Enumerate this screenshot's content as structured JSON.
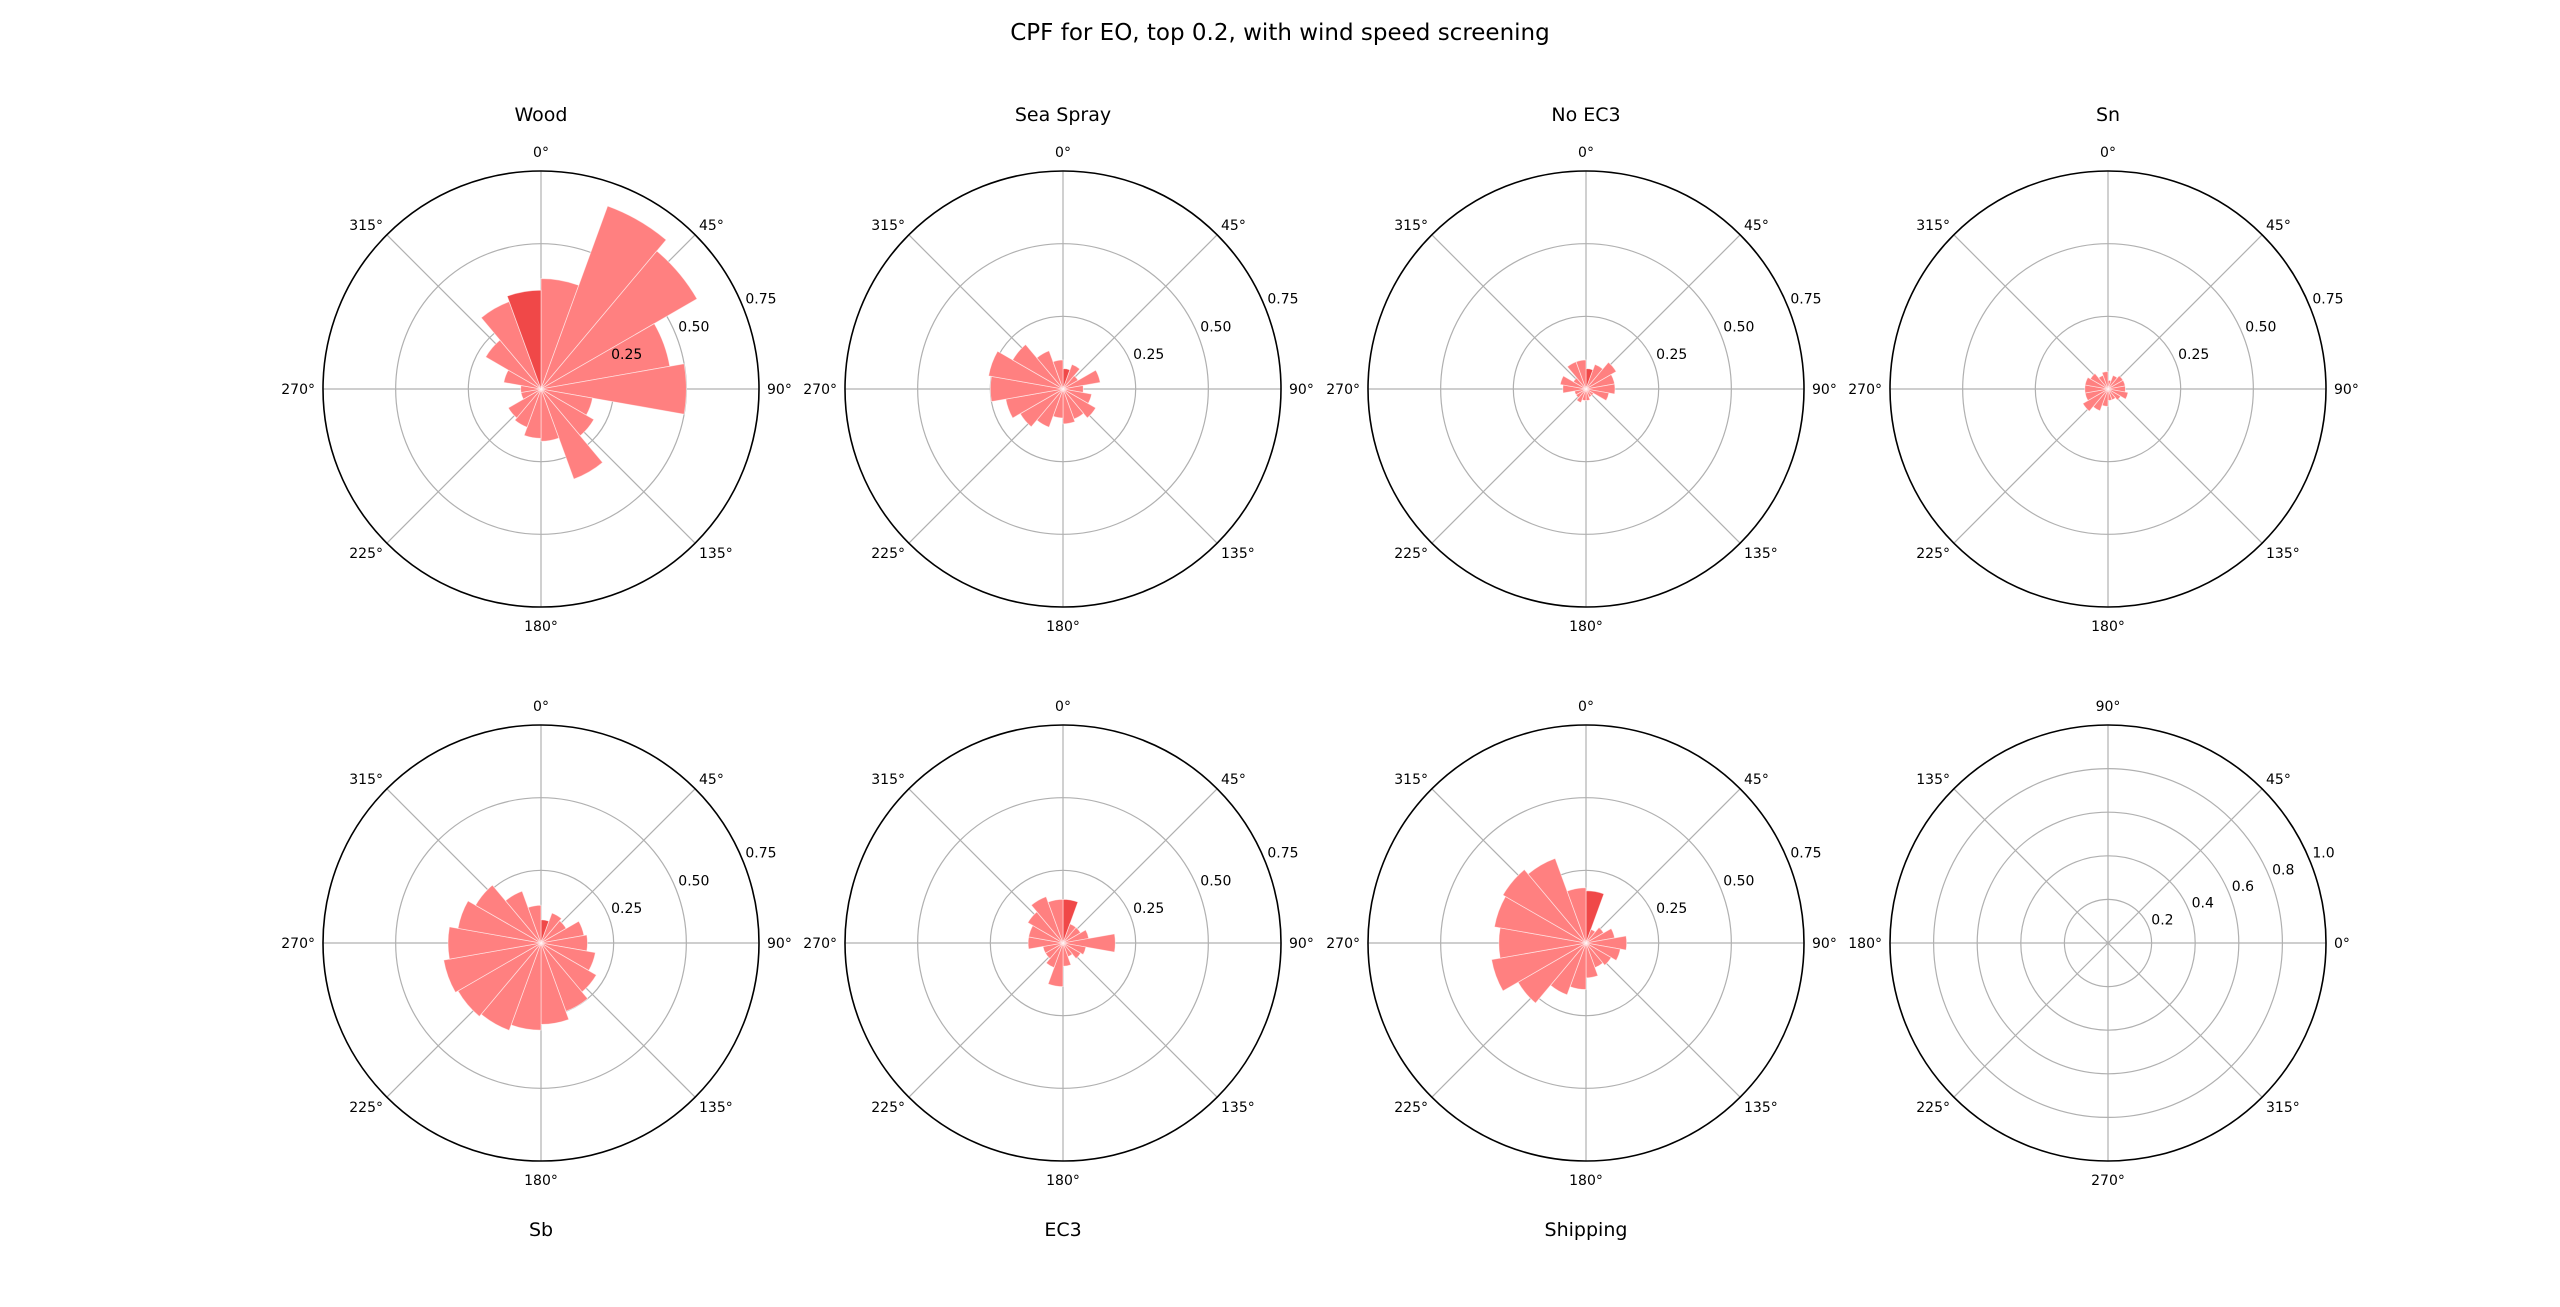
{
  "figure": {
    "suptitle": "CPF for EO, top 0.2, with wind speed screening",
    "bar_color": "#ff8080",
    "highlight_color": "#f04848",
    "grid_color": "#b0b0b0",
    "spine_color": "#000000"
  },
  "chart_data": [
    {
      "type": "polar-bar",
      "title": "Wood",
      "title_position": "top",
      "theta_direction": "clockwise",
      "theta_zero": "N",
      "theta_tick_labels": [
        "0°",
        "45°",
        "90°",
        "135°",
        "180°",
        "225°",
        "270°",
        "315°"
      ],
      "r_ticks": [
        0.25,
        0.5,
        0.75
      ],
      "r_tick_labels": [
        "0.25",
        "0.50",
        "0.75"
      ],
      "rlim": [
        0,
        0.75
      ],
      "bin_width_deg": 20,
      "bins_start_deg": [
        0,
        20,
        40,
        60,
        80,
        100,
        120,
        140,
        160,
        180,
        200,
        220,
        240,
        260,
        280,
        300,
        320,
        340
      ],
      "values": [
        0.38,
        0.67,
        0.62,
        0.45,
        0.5,
        0.18,
        0.21,
        0.33,
        0.18,
        0.17,
        0.14,
        0.13,
        0.07,
        0.07,
        0.13,
        0.22,
        0.32,
        0.34
      ],
      "highlight_bins_start_deg": [
        340
      ]
    },
    {
      "type": "polar-bar",
      "title": "Sea Spray",
      "title_position": "top",
      "theta_direction": "clockwise",
      "theta_zero": "N",
      "theta_tick_labels": [
        "0°",
        "45°",
        "90°",
        "135°",
        "180°",
        "225°",
        "270°",
        "315°"
      ],
      "r_ticks": [
        0.25,
        0.5,
        0.75
      ],
      "r_tick_labels": [
        "0.25",
        "0.50",
        "0.75"
      ],
      "rlim": [
        0,
        0.75
      ],
      "bin_width_deg": 20,
      "bins_start_deg": [
        0,
        20,
        40,
        60,
        80,
        100,
        120,
        140,
        160,
        180,
        200,
        220,
        240,
        260,
        280,
        300,
        320,
        340
      ],
      "values": [
        0.07,
        0.09,
        0.06,
        0.13,
        0.07,
        0.1,
        0.13,
        0.11,
        0.12,
        0.1,
        0.14,
        0.17,
        0.2,
        0.25,
        0.26,
        0.2,
        0.14,
        0.1
      ],
      "highlight_bins_start_deg": [
        0
      ]
    },
    {
      "type": "polar-bar",
      "title": "No EC3",
      "title_position": "top",
      "theta_direction": "clockwise",
      "theta_zero": "N",
      "theta_tick_labels": [
        "0°",
        "45°",
        "90°",
        "135°",
        "180°",
        "225°",
        "270°",
        "315°"
      ],
      "r_ticks": [
        0.25,
        0.5,
        0.75
      ],
      "r_tick_labels": [
        "0.25",
        "0.50",
        "0.75"
      ],
      "rlim": [
        0,
        0.75
      ],
      "bin_width_deg": 20,
      "bins_start_deg": [
        0,
        20,
        40,
        60,
        80,
        100,
        120,
        140,
        160,
        180,
        200,
        220,
        240,
        260,
        280,
        300,
        320,
        340
      ],
      "values": [
        0.07,
        0.09,
        0.12,
        0.1,
        0.1,
        0.08,
        0.03,
        0.03,
        0.04,
        0.04,
        0.05,
        0.04,
        0.04,
        0.08,
        0.09,
        0.05,
        0.1,
        0.1
      ],
      "highlight_bins_start_deg": [
        0
      ]
    },
    {
      "type": "polar-bar",
      "title": "Sn",
      "title_position": "top",
      "theta_direction": "clockwise",
      "theta_zero": "N",
      "theta_tick_labels": [
        "0°",
        "45°",
        "90°",
        "135°",
        "180°",
        "225°",
        "270°",
        "315°"
      ],
      "r_ticks": [
        0.25,
        0.5,
        0.75
      ],
      "r_tick_labels": [
        "0.25",
        "0.50",
        "0.75"
      ],
      "rlim": [
        0,
        0.75
      ],
      "bin_width_deg": 20,
      "bins_start_deg": [
        0,
        20,
        40,
        60,
        80,
        100,
        120,
        140,
        160,
        180,
        200,
        220,
        240,
        260,
        280,
        300,
        320,
        340
      ],
      "values": [
        0.03,
        0.05,
        0.06,
        0.06,
        0.06,
        0.07,
        0.05,
        0.04,
        0.04,
        0.06,
        0.08,
        0.1,
        0.08,
        0.08,
        0.08,
        0.07,
        0.05,
        0.06
      ],
      "highlight_bins_start_deg": []
    },
    {
      "type": "polar-bar",
      "title": "Sb",
      "title_position": "bottom",
      "theta_direction": "clockwise",
      "theta_zero": "N",
      "theta_tick_labels": [
        "0°",
        "45°",
        "90°",
        "135°",
        "180°",
        "225°",
        "270°",
        "315°"
      ],
      "r_ticks": [
        0.25,
        0.5,
        0.75
      ],
      "r_tick_labels": [
        "0.25",
        "0.50",
        "0.75"
      ],
      "rlim": [
        0,
        0.75
      ],
      "bin_width_deg": 20,
      "bins_start_deg": [
        0,
        20,
        40,
        60,
        80,
        100,
        120,
        140,
        160,
        180,
        200,
        220,
        240,
        260,
        280,
        300,
        320,
        340
      ],
      "values": [
        0.08,
        0.11,
        0.1,
        0.15,
        0.16,
        0.19,
        0.22,
        0.25,
        0.28,
        0.3,
        0.32,
        0.33,
        0.34,
        0.32,
        0.29,
        0.26,
        0.19,
        0.13
      ],
      "highlight_bins_start_deg": [
        0
      ]
    },
    {
      "type": "polar-bar",
      "title": "EC3",
      "title_position": "bottom",
      "theta_direction": "clockwise",
      "theta_zero": "N",
      "theta_tick_labels": [
        "0°",
        "45°",
        "90°",
        "135°",
        "180°",
        "225°",
        "270°",
        "315°"
      ],
      "r_ticks": [
        0.25,
        0.5,
        0.75
      ],
      "r_tick_labels": [
        "0.25",
        "0.50",
        "0.75"
      ],
      "rlim": [
        0,
        0.75
      ],
      "bin_width_deg": 20,
      "bins_start_deg": [
        0,
        20,
        40,
        60,
        80,
        100,
        120,
        140,
        160,
        180,
        200,
        220,
        240,
        260,
        280,
        300,
        320,
        340
      ],
      "values": [
        0.15,
        0.07,
        0.07,
        0.09,
        0.18,
        0.08,
        0.07,
        0.05,
        0.08,
        0.15,
        0.09,
        0.07,
        0.07,
        0.12,
        0.12,
        0.14,
        0.17,
        0.15
      ],
      "highlight_bins_start_deg": [
        0
      ]
    },
    {
      "type": "polar-bar",
      "title": "Shipping",
      "title_position": "bottom",
      "theta_direction": "clockwise",
      "theta_zero": "N",
      "theta_tick_labels": [
        "0°",
        "45°",
        "90°",
        "135°",
        "180°",
        "225°",
        "270°",
        "315°"
      ],
      "r_ticks": [
        0.25,
        0.5,
        0.75
      ],
      "r_tick_labels": [
        "0.25",
        "0.50",
        "0.75"
      ],
      "rlim": [
        0,
        0.75
      ],
      "bin_width_deg": 20,
      "bins_start_deg": [
        0,
        20,
        40,
        60,
        80,
        100,
        120,
        140,
        160,
        180,
        200,
        220,
        240,
        260,
        280,
        300,
        320,
        340
      ],
      "values": [
        0.18,
        0.05,
        0.07,
        0.1,
        0.14,
        0.12,
        0.1,
        0.09,
        0.12,
        0.16,
        0.19,
        0.27,
        0.33,
        0.3,
        0.32,
        0.33,
        0.31,
        0.19
      ],
      "highlight_bins_start_deg": [
        0
      ]
    },
    {
      "type": "polar-empty",
      "title": "",
      "theta_direction": "counterclockwise",
      "theta_zero": "E",
      "theta_tick_labels": [
        "0°",
        "45°",
        "90°",
        "135°",
        "180°",
        "225°",
        "270°",
        "315°"
      ],
      "r_ticks": [
        0.2,
        0.4,
        0.6,
        0.8,
        1.0
      ],
      "r_tick_labels": [
        "0.2",
        "0.4",
        "0.6",
        "0.8",
        "1.0"
      ],
      "rlim": [
        0,
        1.0
      ],
      "values": []
    }
  ]
}
